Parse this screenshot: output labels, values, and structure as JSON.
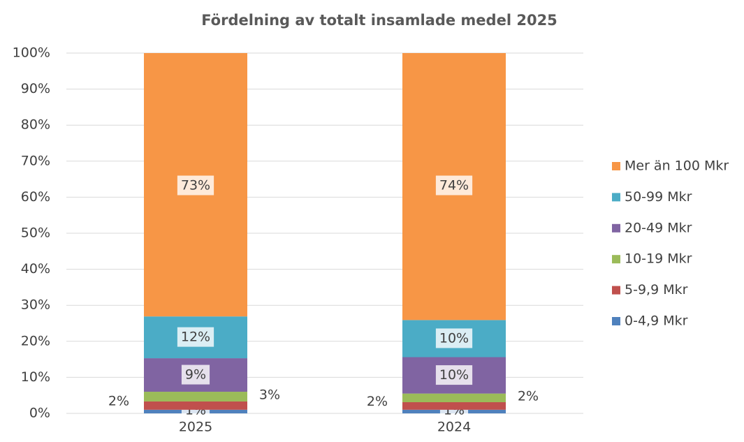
{
  "chart_data": {
    "type": "stacked_bar",
    "title": "Fördelning av totalt insamlade medel 2025",
    "categories": [
      "2025",
      "2024"
    ],
    "series": [
      {
        "name": "0-4,9 Mkr",
        "color": "#4f81bd",
        "values": [
          1.0,
          1.0
        ],
        "value_labels": [
          "1%",
          "1%"
        ]
      },
      {
        "name": "5-9,9 Mkr",
        "color": "#c0504d",
        "values": [
          2.3,
          2.1
        ],
        "value_labels": [
          "2%",
          "2%"
        ]
      },
      {
        "name": "10-19 Mkr",
        "color": "#9bbb59",
        "values": [
          2.7,
          2.4
        ],
        "value_labels": [
          "3%",
          "2%"
        ]
      },
      {
        "name": "20-49 Mkr",
        "color": "#8064a2",
        "values": [
          9.3,
          10.1
        ],
        "value_labels": [
          "9%",
          "10%"
        ]
      },
      {
        "name": "50-99 Mkr",
        "color": "#4bacc6",
        "values": [
          11.6,
          10.3
        ],
        "value_labels": [
          "12%",
          "10%"
        ]
      },
      {
        "name": "Mer än 100 Mkr",
        "color": "#f79646",
        "values": [
          73.1,
          74.1
        ],
        "value_labels": [
          "73%",
          "74%"
        ]
      }
    ],
    "ylim": [
      0,
      100
    ],
    "yticks": [
      {
        "value": 0,
        "label": "0%"
      },
      {
        "value": 10,
        "label": "10%"
      },
      {
        "value": 20,
        "label": "20%"
      },
      {
        "value": 30,
        "label": "30%"
      },
      {
        "value": 40,
        "label": "40%"
      },
      {
        "value": 50,
        "label": "50%"
      },
      {
        "value": 60,
        "label": "60%"
      },
      {
        "value": 70,
        "label": "70%"
      },
      {
        "value": 80,
        "label": "80%"
      },
      {
        "value": 90,
        "label": "90%"
      },
      {
        "value": 100,
        "label": "100%"
      }
    ],
    "grid": true,
    "legend": "right"
  }
}
